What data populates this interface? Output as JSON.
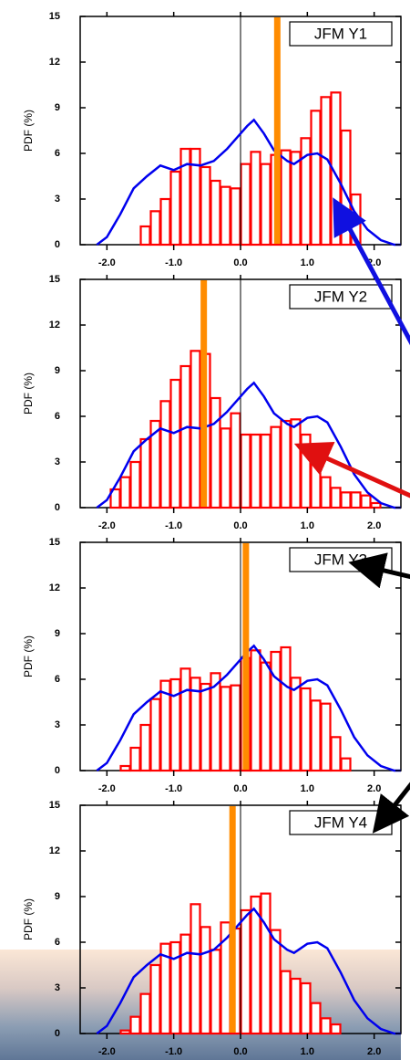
{
  "chart_data": [
    {
      "type": "histogram",
      "title": "JFM Y1",
      "ylabel": "PDF (%)",
      "bins": [
        -2.1,
        -1.95,
        -1.8,
        -1.65,
        -1.5,
        -1.35,
        -1.2,
        -1.05,
        -0.9,
        -0.75,
        -0.6,
        -0.45,
        -0.3,
        -0.15,
        0,
        0.15,
        0.3,
        0.45,
        0.6,
        0.75,
        0.9,
        1.05,
        1.2,
        1.35,
        1.5,
        1.65,
        1.8,
        1.95,
        2.1
      ],
      "values": [
        0,
        0,
        0,
        0,
        1.2,
        2.2,
        3.0,
        4.8,
        6.3,
        6.3,
        5.1,
        4.2,
        3.8,
        3.7,
        5.3,
        6.1,
        5.3,
        5.9,
        6.2,
        6.1,
        7.0,
        8.8,
        9.7,
        10.0,
        7.5,
        3.3,
        0,
        0
      ],
      "color": "#ff0000",
      "line": {
        "color": "#0000ee",
        "x": [
          -2.15,
          -2.0,
          -1.8,
          -1.6,
          -1.4,
          -1.2,
          -1.0,
          -0.9,
          -0.8,
          -0.6,
          -0.4,
          -0.2,
          0.0,
          0.1,
          0.2,
          0.35,
          0.5,
          0.7,
          0.8,
          1.0,
          1.15,
          1.3,
          1.5,
          1.7,
          1.9,
          2.1,
          2.3,
          2.4
        ],
        "values": [
          0,
          0.5,
          2.0,
          3.7,
          4.5,
          5.2,
          4.9,
          5.1,
          5.3,
          5.2,
          5.5,
          6.3,
          7.3,
          7.8,
          8.2,
          7.3,
          6.2,
          5.5,
          5.3,
          5.9,
          6.0,
          5.6,
          4.0,
          2.2,
          1.0,
          0.3,
          0,
          0
        ]
      },
      "marker_x": 0.55,
      "marker_color": "#ff8c00",
      "xlim": [
        -2.4,
        2.4
      ],
      "ylim": [
        0,
        15
      ],
      "xticks": [
        {
          "value": -2,
          "label": "-2.0"
        },
        {
          "value": -1,
          "label": "-1.0"
        },
        {
          "value": 0,
          "label": "0.0"
        },
        {
          "value": 1,
          "label": "1.0"
        },
        {
          "value": 2,
          "label": "2.0"
        }
      ],
      "yticks": [
        0,
        3,
        6,
        9,
        12,
        15
      ]
    },
    {
      "type": "histogram",
      "title": "JFM Y2",
      "ylabel": "PDF (%)",
      "bins": [
        -2.1,
        -1.95,
        -1.8,
        -1.65,
        -1.5,
        -1.35,
        -1.2,
        -1.05,
        -0.9,
        -0.75,
        -0.6,
        -0.45,
        -0.3,
        -0.15,
        0,
        0.15,
        0.3,
        0.45,
        0.6,
        0.75,
        0.9,
        1.05,
        1.2,
        1.35,
        1.5,
        1.65,
        1.8,
        1.95,
        2.1
      ],
      "values": [
        0,
        1.2,
        2.0,
        3.0,
        4.5,
        5.7,
        7.0,
        8.4,
        9.3,
        10.3,
        10.1,
        7.2,
        5.2,
        6.2,
        4.8,
        4.8,
        4.8,
        5.3,
        5.7,
        5.8,
        4.8,
        3.2,
        2.0,
        1.3,
        1.0,
        1.0,
        0.8,
        0.3
      ],
      "color": "#ff0000",
      "line": {
        "color": "#0000ee",
        "x": [
          -2.15,
          -2.0,
          -1.8,
          -1.6,
          -1.4,
          -1.2,
          -1.0,
          -0.9,
          -0.8,
          -0.6,
          -0.4,
          -0.2,
          0.0,
          0.1,
          0.2,
          0.35,
          0.5,
          0.7,
          0.8,
          1.0,
          1.15,
          1.3,
          1.5,
          1.7,
          1.9,
          2.1,
          2.3,
          2.4
        ],
        "values": [
          0,
          0.5,
          2.0,
          3.7,
          4.5,
          5.2,
          4.9,
          5.1,
          5.3,
          5.2,
          5.5,
          6.3,
          7.3,
          7.8,
          8.2,
          7.3,
          6.2,
          5.5,
          5.3,
          5.9,
          6.0,
          5.6,
          4.0,
          2.2,
          1.0,
          0.3,
          0,
          0
        ]
      },
      "marker_x": -0.55,
      "marker_color": "#ff8c00",
      "xlim": [
        -2.4,
        2.4
      ],
      "ylim": [
        0,
        15
      ],
      "xticks": [
        {
          "value": -2,
          "label": "-2.0"
        },
        {
          "value": -1,
          "label": "-1.0"
        },
        {
          "value": 0,
          "label": "0.0"
        },
        {
          "value": 1,
          "label": "1.0"
        },
        {
          "value": 2,
          "label": "2.0"
        }
      ],
      "yticks": [
        0,
        3,
        6,
        9,
        12,
        15
      ]
    },
    {
      "type": "histogram",
      "title": "JFM Y3",
      "ylabel": "PDF (%)",
      "bins": [
        -2.1,
        -1.95,
        -1.8,
        -1.65,
        -1.5,
        -1.35,
        -1.2,
        -1.05,
        -0.9,
        -0.75,
        -0.6,
        -0.45,
        -0.3,
        -0.15,
        0,
        0.15,
        0.3,
        0.45,
        0.6,
        0.75,
        0.9,
        1.05,
        1.2,
        1.35,
        1.5,
        1.65,
        1.8,
        1.95,
        2.1
      ],
      "values": [
        0,
        0,
        0.3,
        1.5,
        3.0,
        4.7,
        5.9,
        6.0,
        6.7,
        6.1,
        5.7,
        6.4,
        5.5,
        5.6,
        7.4,
        7.9,
        7.1,
        7.8,
        8.1,
        6.1,
        5.4,
        4.6,
        4.4,
        2.2,
        0.8,
        0,
        0,
        0
      ],
      "color": "#ff0000",
      "line": {
        "color": "#0000ee",
        "x": [
          -2.15,
          -2.0,
          -1.8,
          -1.6,
          -1.4,
          -1.2,
          -1.0,
          -0.9,
          -0.8,
          -0.6,
          -0.4,
          -0.2,
          0.0,
          0.1,
          0.2,
          0.35,
          0.5,
          0.7,
          0.8,
          1.0,
          1.15,
          1.3,
          1.5,
          1.7,
          1.9,
          2.1,
          2.3,
          2.4
        ],
        "values": [
          0,
          0.5,
          2.0,
          3.7,
          4.5,
          5.2,
          4.9,
          5.1,
          5.3,
          5.2,
          5.5,
          6.3,
          7.3,
          7.8,
          8.2,
          7.3,
          6.2,
          5.5,
          5.3,
          5.9,
          6.0,
          5.6,
          4.0,
          2.2,
          1.0,
          0.3,
          0,
          0
        ]
      },
      "marker_x": 0.08,
      "marker_color": "#ff8c00",
      "xlim": [
        -2.4,
        2.4
      ],
      "ylim": [
        0,
        15
      ],
      "xticks": [
        {
          "value": -2,
          "label": "-2.0"
        },
        {
          "value": -1,
          "label": "-1.0"
        },
        {
          "value": 0,
          "label": "0.0"
        },
        {
          "value": 1,
          "label": "1.0"
        },
        {
          "value": 2,
          "label": "2.0"
        }
      ],
      "yticks": [
        0,
        3,
        6,
        9,
        12,
        15
      ]
    },
    {
      "type": "histogram",
      "title": "JFM Y4",
      "ylabel": "PDF (%)",
      "bins": [
        -2.1,
        -1.95,
        -1.8,
        -1.65,
        -1.5,
        -1.35,
        -1.2,
        -1.05,
        -0.9,
        -0.75,
        -0.6,
        -0.45,
        -0.3,
        -0.15,
        0,
        0.15,
        0.3,
        0.45,
        0.6,
        0.75,
        0.9,
        1.05,
        1.2,
        1.35,
        1.5,
        1.65,
        1.8,
        1.95,
        2.1
      ],
      "values": [
        0,
        0,
        0.2,
        1.1,
        2.6,
        4.5,
        5.9,
        6.0,
        6.5,
        8.5,
        7.0,
        5.5,
        7.3,
        6.9,
        8.1,
        9.0,
        9.2,
        6.8,
        4.1,
        3.6,
        3.3,
        2.0,
        1.0,
        0.6,
        0,
        0,
        0,
        0
      ],
      "color": "#ff0000",
      "line": {
        "color": "#0000ee",
        "x": [
          -2.15,
          -2.0,
          -1.8,
          -1.6,
          -1.4,
          -1.2,
          -1.0,
          -0.9,
          -0.8,
          -0.6,
          -0.4,
          -0.2,
          0.0,
          0.1,
          0.2,
          0.35,
          0.5,
          0.7,
          0.8,
          1.0,
          1.15,
          1.3,
          1.5,
          1.7,
          1.9,
          2.1,
          2.3,
          2.4
        ],
        "values": [
          0,
          0.5,
          2.0,
          3.7,
          4.5,
          5.2,
          4.9,
          5.1,
          5.3,
          5.2,
          5.5,
          6.3,
          7.3,
          7.8,
          8.2,
          7.3,
          6.2,
          5.5,
          5.3,
          5.9,
          6.0,
          5.6,
          4.0,
          2.2,
          1.0,
          0.3,
          0,
          0
        ]
      },
      "marker_x": -0.12,
      "marker_color": "#ff8c00",
      "xlim": [
        -2.4,
        2.4
      ],
      "ylim": [
        0,
        15
      ],
      "xticks": [
        {
          "value": -2,
          "label": "-2.0"
        },
        {
          "value": -1,
          "label": "-1.0"
        },
        {
          "value": 0,
          "label": "0.0"
        },
        {
          "value": 1,
          "label": "1.0"
        },
        {
          "value": 2,
          "label": "2.0"
        }
      ],
      "yticks": [
        0,
        3,
        6,
        9,
        12,
        15
      ]
    }
  ]
}
